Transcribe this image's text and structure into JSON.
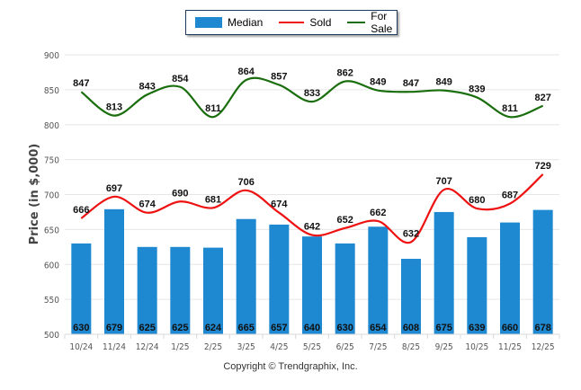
{
  "legend": {
    "median_label": "Median",
    "sold_label": "Sold",
    "forsale_label": "For Sale"
  },
  "copyright": "Copyright © Trendgraphix, Inc.",
  "colors": {
    "median": "#1e88d0",
    "sold": "#ee1111",
    "forsale": "#1a6e0e"
  },
  "chart_data": {
    "type": "bar",
    "title": "",
    "xlabel": "",
    "ylabel": "Price (in $,000)",
    "ylim": [
      500,
      900
    ],
    "yticks": [
      500,
      550,
      600,
      650,
      700,
      750,
      800,
      850,
      900
    ],
    "grid": true,
    "legend_position": "top-center",
    "categories": [
      "10/24",
      "11/24",
      "12/24",
      "1/25",
      "2/25",
      "3/25",
      "4/25",
      "5/25",
      "6/25",
      "7/25",
      "8/25",
      "9/25",
      "10/25",
      "11/25",
      "12/25"
    ],
    "series": [
      {
        "name": "Median",
        "type": "bar",
        "values": [
          630,
          679,
          625,
          625,
          624,
          665,
          657,
          640,
          630,
          654,
          608,
          675,
          639,
          660,
          678
        ]
      },
      {
        "name": "Sold",
        "type": "line",
        "values": [
          666,
          697,
          674,
          690,
          681,
          706,
          674,
          642,
          652,
          662,
          632,
          707,
          680,
          687,
          729
        ]
      },
      {
        "name": "For Sale",
        "type": "line",
        "values": [
          847,
          813,
          843,
          854,
          811,
          864,
          857,
          833,
          862,
          849,
          847,
          849,
          839,
          811,
          827
        ]
      }
    ]
  }
}
